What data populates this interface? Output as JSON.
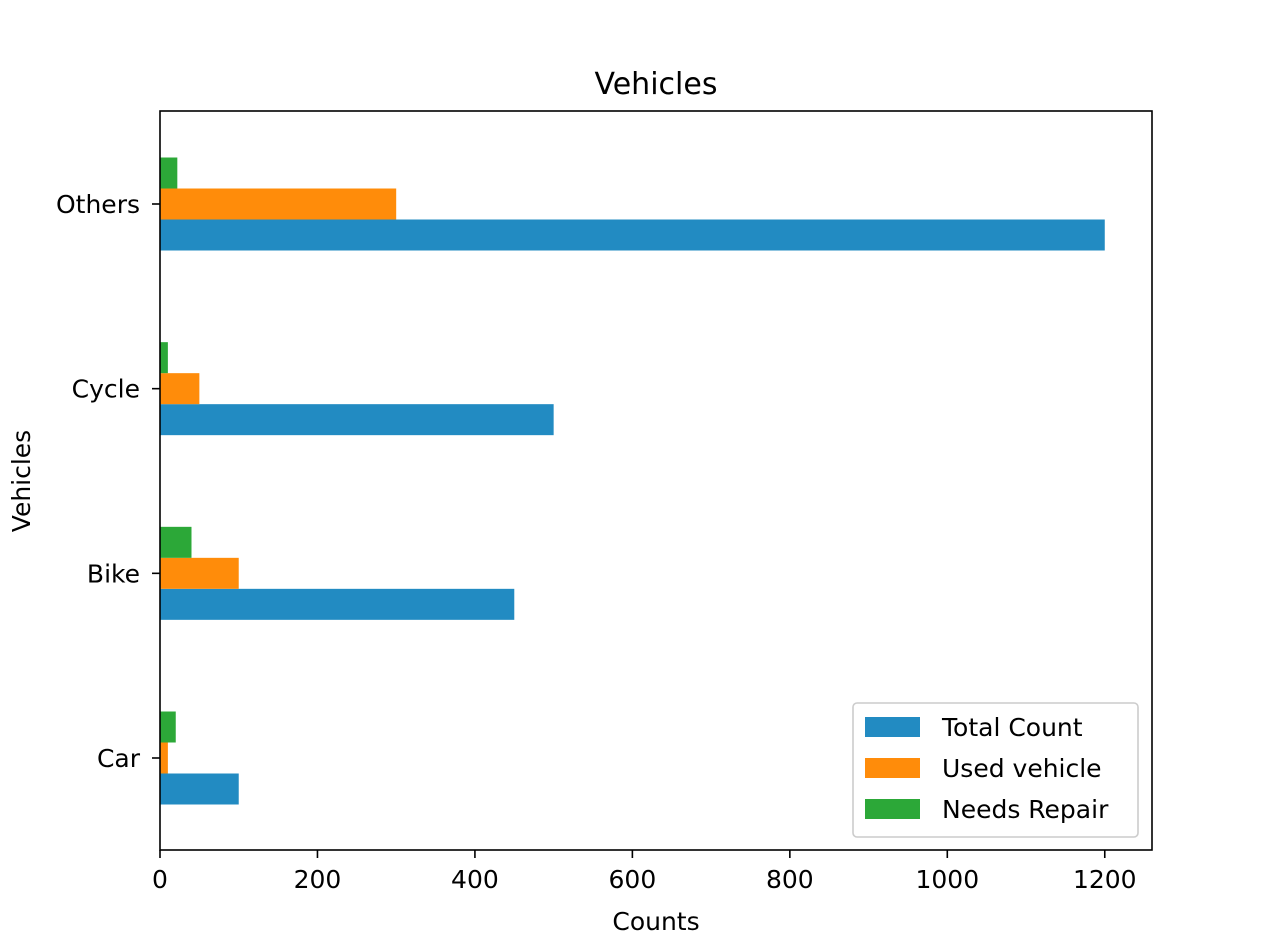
{
  "chart_data": {
    "type": "bar",
    "orientation": "horizontal",
    "title": "Vehicles",
    "xlabel": "Counts",
    "ylabel": "Vehicles",
    "categories": [
      "Car",
      "Bike",
      "Cycle",
      "Others"
    ],
    "series": [
      {
        "name": "Total Count",
        "values": [
          100,
          450,
          500,
          1200
        ],
        "color": "#228bc2"
      },
      {
        "name": "Used vehicle",
        "values": [
          10,
          100,
          50,
          300
        ],
        "color": "#ff8c0a"
      },
      {
        "name": "Needs Repair",
        "values": [
          20,
          40,
          10,
          22
        ],
        "color": "#2ca838"
      }
    ],
    "xlim": [
      0,
      1260
    ],
    "xticks": [
      0,
      200,
      400,
      600,
      800,
      1000,
      1200
    ],
    "grid": false,
    "legend_position": "lower right"
  }
}
